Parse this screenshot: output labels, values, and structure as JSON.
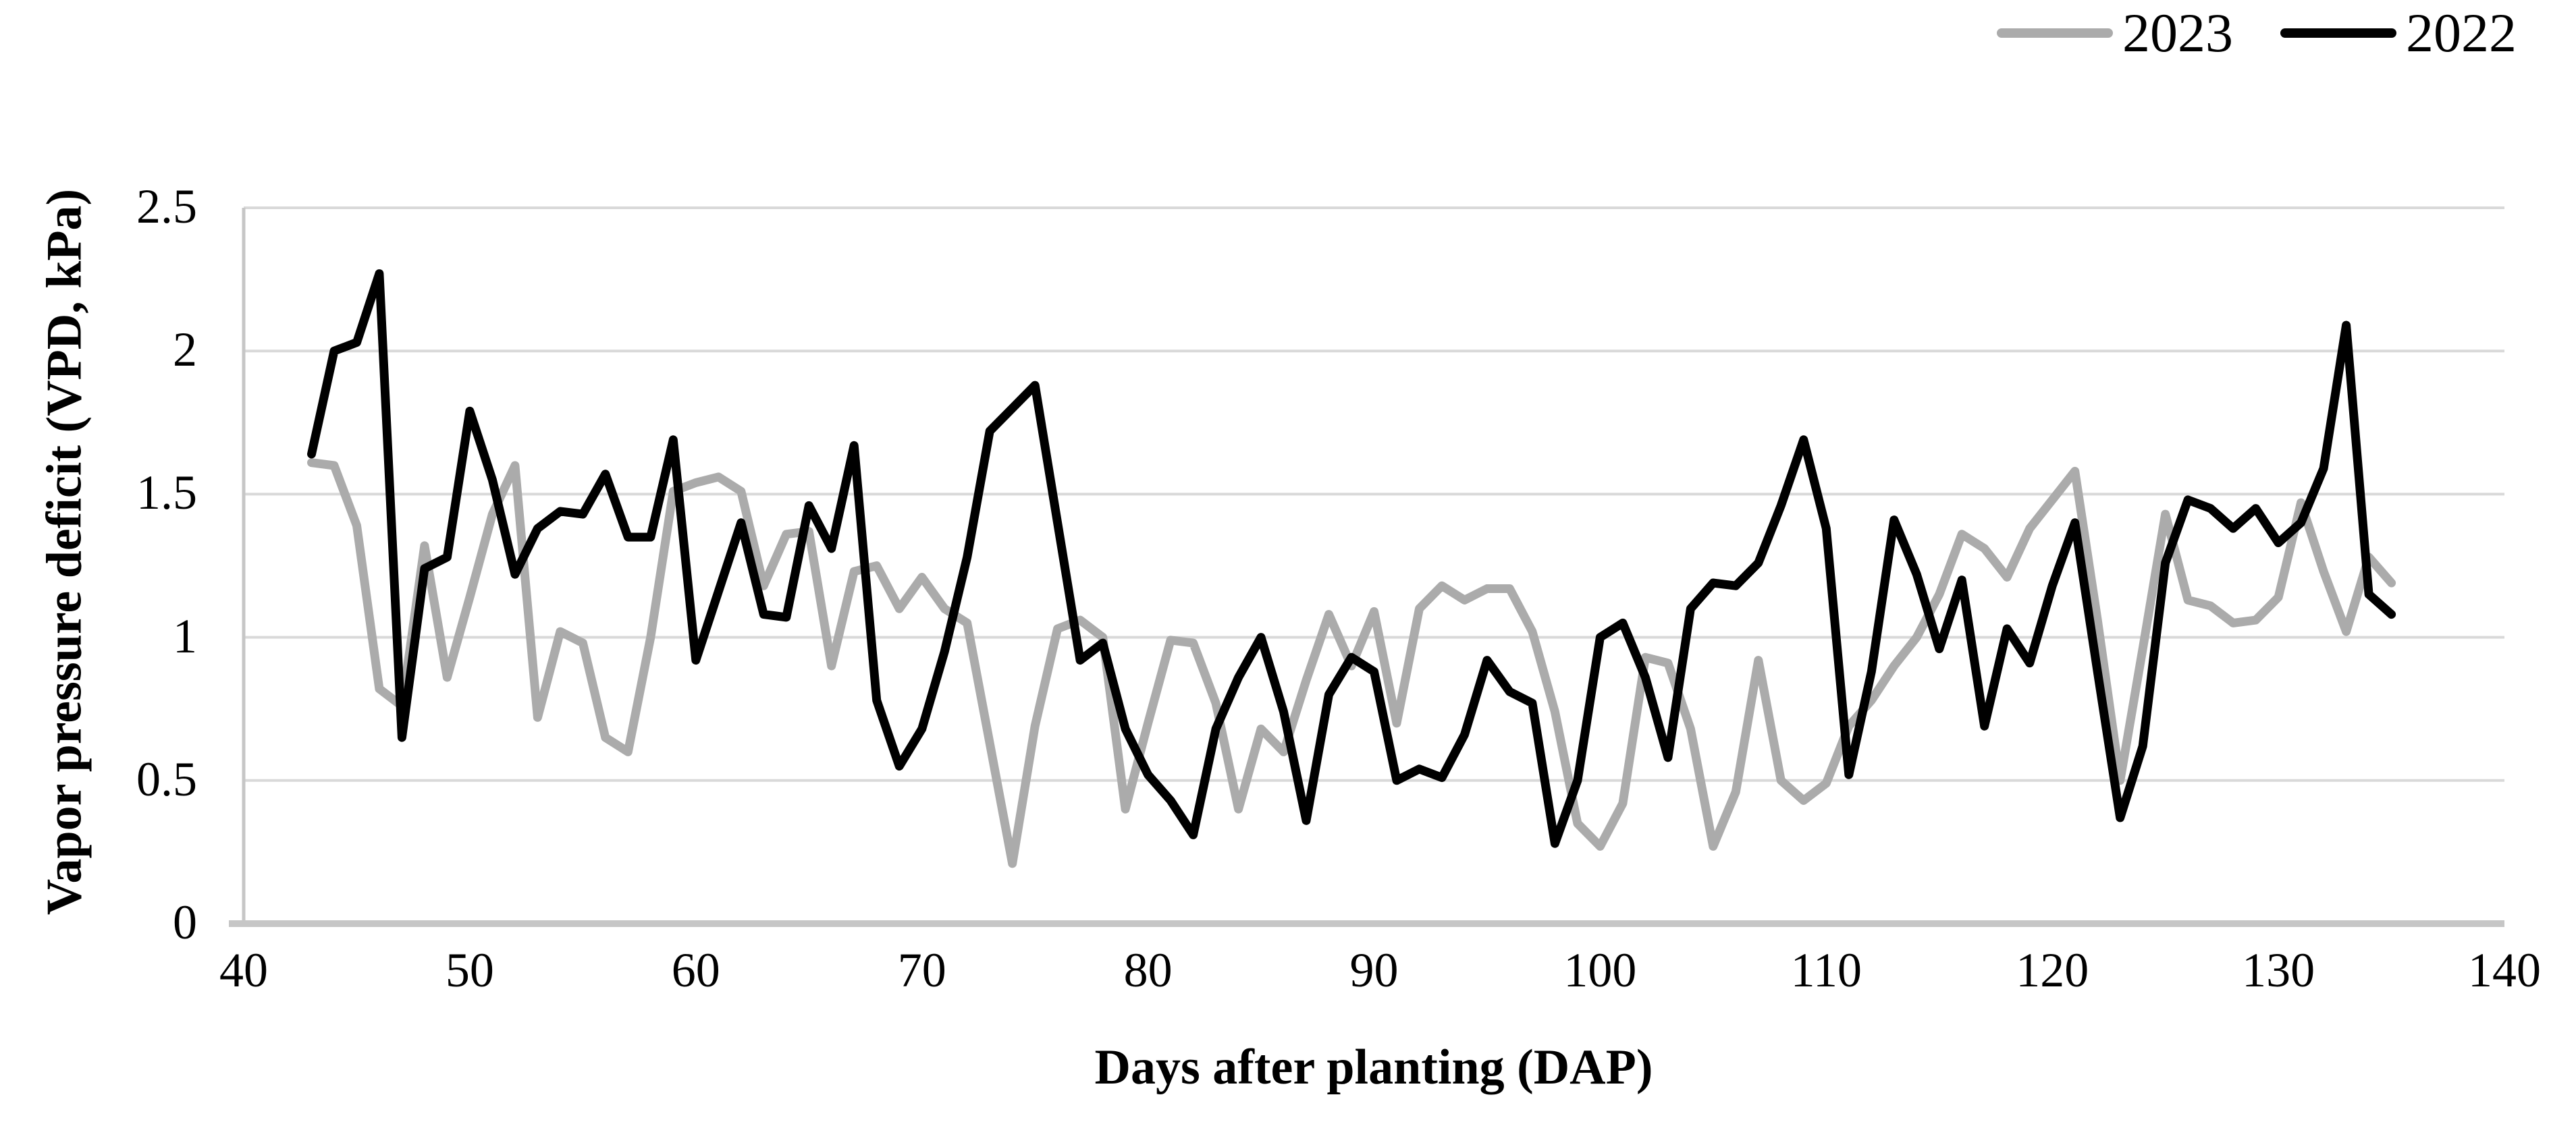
{
  "legend": {
    "items": [
      {
        "label": "2023",
        "color": "#ABABAB"
      },
      {
        "label": "2022",
        "color": "#000000"
      }
    ]
  },
  "chart_data": {
    "type": "line",
    "title": "",
    "xlabel": "Days after planting (DAP)",
    "ylabel": "Vapor pressure deficit (VPD, kPa)",
    "xlim": [
      40,
      140
    ],
    "ylim": [
      0,
      2.5
    ],
    "x_ticks": [
      40,
      50,
      60,
      70,
      80,
      90,
      100,
      110,
      120,
      130,
      140
    ],
    "y_ticks": [
      "0",
      "0.5",
      "1",
      "1.5",
      "2",
      "2.5"
    ],
    "grid": "horizontal",
    "legend_position": "top-right",
    "x": [
      43,
      44,
      45,
      46,
      47,
      48,
      49,
      50,
      51,
      52,
      53,
      54,
      55,
      56,
      57,
      58,
      59,
      60,
      61,
      62,
      63,
      64,
      65,
      66,
      67,
      68,
      69,
      70,
      71,
      72,
      73,
      74,
      75,
      76,
      77,
      78,
      79,
      80,
      81,
      82,
      83,
      84,
      85,
      86,
      87,
      88,
      89,
      90,
      91,
      92,
      93,
      94,
      95,
      96,
      97,
      98,
      99,
      100,
      101,
      102,
      103,
      104,
      105,
      106,
      107,
      108,
      109,
      110,
      111,
      112,
      113,
      114,
      115,
      116,
      117,
      118,
      119,
      120,
      121,
      122,
      123,
      124,
      125,
      126,
      127,
      128,
      129,
      130,
      131,
      132,
      133,
      134,
      135
    ],
    "series": [
      {
        "name": "2023",
        "color": "#ABABAB",
        "values": [
          1.61,
          1.6,
          1.39,
          0.82,
          0.76,
          1.32,
          0.86,
          1.14,
          1.43,
          1.6,
          0.72,
          1.02,
          0.98,
          0.65,
          0.6,
          1.0,
          1.51,
          1.54,
          1.56,
          1.51,
          1.18,
          1.36,
          1.37,
          0.9,
          1.23,
          1.25,
          1.1,
          1.21,
          1.1,
          1.05,
          0.63,
          0.21,
          0.69,
          1.03,
          1.06,
          1.0,
          0.4,
          0.7,
          0.99,
          0.98,
          0.77,
          0.4,
          0.68,
          0.6,
          0.85,
          1.08,
          0.9,
          1.09,
          0.7,
          1.1,
          1.18,
          1.13,
          1.17,
          1.17,
          1.02,
          0.74,
          0.35,
          0.27,
          0.42,
          0.93,
          0.91,
          0.68,
          0.27,
          0.46,
          0.92,
          0.5,
          0.43,
          0.49,
          0.69,
          0.78,
          0.9,
          1.0,
          1.15,
          1.36,
          1.31,
          1.21,
          1.38,
          1.48,
          1.58,
          1.06,
          0.5,
          0.96,
          1.43,
          1.13,
          1.11,
          1.05,
          1.06,
          1.14,
          1.47,
          1.23,
          1.02,
          1.28,
          1.19
        ]
      },
      {
        "name": "2022",
        "color": "#000000",
        "values": [
          1.64,
          2.0,
          2.03,
          2.27,
          0.65,
          1.24,
          1.28,
          1.79,
          1.55,
          1.22,
          1.38,
          1.44,
          1.43,
          1.57,
          1.35,
          1.35,
          1.69,
          0.92,
          1.16,
          1.4,
          1.08,
          1.07,
          1.46,
          1.31,
          1.67,
          0.78,
          0.55,
          0.68,
          0.95,
          1.28,
          1.72,
          1.8,
          1.88,
          1.4,
          0.92,
          0.98,
          0.68,
          0.52,
          0.43,
          0.31,
          0.68,
          0.86,
          1.0,
          0.74,
          0.36,
          0.8,
          0.93,
          0.88,
          0.5,
          0.54,
          0.51,
          0.66,
          0.92,
          0.81,
          0.77,
          0.28,
          0.5,
          1.0,
          1.05,
          0.86,
          0.58,
          1.1,
          1.19,
          1.18,
          1.26,
          1.46,
          1.69,
          1.38,
          0.52,
          0.88,
          1.41,
          1.22,
          0.96,
          1.2,
          0.69,
          1.03,
          0.91,
          1.18,
          1.4,
          0.88,
          0.37,
          0.62,
          1.26,
          1.48,
          1.45,
          1.38,
          1.45,
          1.33,
          1.4,
          1.59,
          2.09,
          1.15,
          1.08
        ]
      }
    ]
  }
}
